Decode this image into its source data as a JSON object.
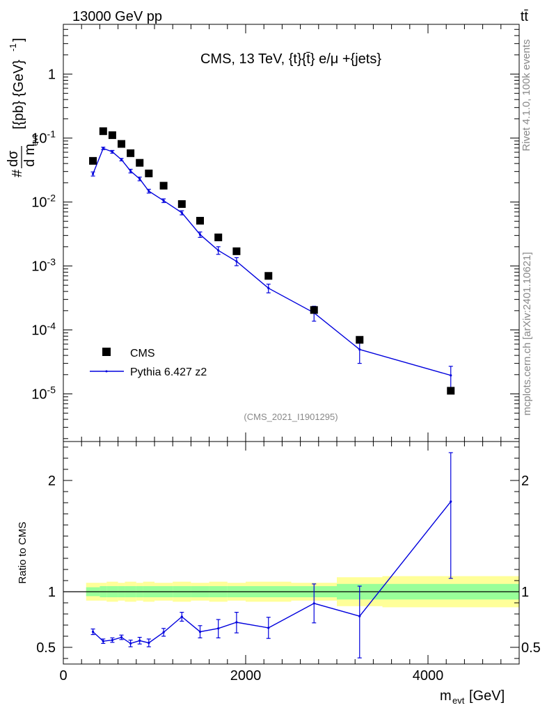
{
  "header": {
    "energy_label": "13000 GeV pp",
    "process_label": "tt̄"
  },
  "side_labels": {
    "rivet": "Rivet 4.1.0,  100k events",
    "source": "mcplots.cern.ch [arXiv:2401.10621]"
  },
  "chart_data": [
    {
      "type": "scatter",
      "panel": "main",
      "title": "CMS, 13 TeV, {t}{t̄} e/μ +{jets}",
      "watermark": "(CMS_2021_I1901295)",
      "ylabel": "# dσ/d m_evt [{pb} {GeV}^-1]",
      "yscale": "log",
      "xlim": [
        0,
        5000
      ],
      "ylim": [
        1.8e-06,
        6
      ],
      "y_ticks": [
        {
          "value": 1e-05,
          "label": "10^-5"
        },
        {
          "value": 0.0001,
          "label": "10^-4"
        },
        {
          "value": 0.001,
          "label": "10^-3"
        },
        {
          "value": 0.01,
          "label": "10^-2"
        },
        {
          "value": 0.1,
          "label": "10^-1"
        },
        {
          "value": 1,
          "label": "1"
        }
      ],
      "legend": [
        "CMS",
        "Pythia 6.427 z2"
      ],
      "legend_position": "bottom-left",
      "series": [
        {
          "name": "CMS",
          "kind": "markers",
          "color": "#000000",
          "x": [
            325,
            437.5,
            537.5,
            637.5,
            737.5,
            837.5,
            937.5,
            1100,
            1300,
            1500,
            1700,
            1900,
            2250,
            2750,
            3250,
            4250
          ],
          "y": [
            0.044,
            0.128,
            0.111,
            0.081,
            0.058,
            0.041,
            0.028,
            0.018,
            0.0093,
            0.0051,
            0.0028,
            0.0017,
            0.0007,
            0.000205,
            7e-05,
            1.12e-05
          ]
        },
        {
          "name": "Pythia 6.427 z2",
          "kind": "line",
          "color": "#0000dd",
          "x": [
            325,
            437.5,
            537.5,
            637.5,
            737.5,
            837.5,
            937.5,
            1100,
            1300,
            1500,
            1700,
            1900,
            2250,
            2750,
            3250,
            4250
          ],
          "y": [
            0.0275,
            0.069,
            0.061,
            0.046,
            0.0305,
            0.023,
            0.0148,
            0.0105,
            0.0068,
            0.0031,
            0.00175,
            0.00118,
            0.00045,
            0.000185,
            4.95e-05,
            1.95e-05
          ],
          "y_low": [
            0.0255,
            0.066,
            0.058,
            0.044,
            0.0285,
            0.0215,
            0.0138,
            0.0098,
            0.0063,
            0.0028,
            0.00152,
            0.00101,
            0.00038,
            0.000137,
            3e-05,
            1.25e-05
          ],
          "y_high": [
            0.0295,
            0.072,
            0.064,
            0.048,
            0.0325,
            0.0245,
            0.0158,
            0.0112,
            0.0073,
            0.0034,
            0.002,
            0.00135,
            0.00052,
            0.000235,
            7.4e-05,
            2.7e-05
          ]
        }
      ]
    },
    {
      "type": "line",
      "panel": "ratio",
      "ylabel": "Ratio to CMS",
      "xlabel": "m_evt [GeV]",
      "xlim": [
        0,
        5000
      ],
      "ylim": [
        0.35,
        2.35
      ],
      "x_ticks": [
        {
          "value": 0,
          "label": "0"
        },
        {
          "value": 2000,
          "label": "2000"
        },
        {
          "value": 4000,
          "label": "4000"
        }
      ],
      "y_ticks": [
        {
          "value": 0.5,
          "label": "0.5"
        },
        {
          "value": 1,
          "label": "1"
        },
        {
          "value": 2,
          "label": "2"
        }
      ],
      "reference_line": 1,
      "bands": {
        "bin_edges": [
          250,
          400,
          475,
          600,
          675,
          800,
          875,
          1000,
          1200,
          1400,
          1600,
          1800,
          2000,
          2500,
          3000,
          3500,
          5000
        ],
        "green_low": [
          0.96,
          0.95,
          0.95,
          0.95,
          0.95,
          0.95,
          0.95,
          0.95,
          0.95,
          0.95,
          0.95,
          0.95,
          0.95,
          0.95,
          0.93,
          0.93
        ],
        "green_high": [
          1.04,
          1.05,
          1.05,
          1.05,
          1.05,
          1.05,
          1.05,
          1.05,
          1.05,
          1.05,
          1.05,
          1.05,
          1.05,
          1.05,
          1.07,
          1.07
        ],
        "yellow_low": [
          0.92,
          0.92,
          0.91,
          0.92,
          0.91,
          0.92,
          0.91,
          0.92,
          0.91,
          0.92,
          0.91,
          0.92,
          0.91,
          0.92,
          0.87,
          0.86
        ],
        "yellow_high": [
          1.08,
          1.08,
          1.09,
          1.08,
          1.09,
          1.08,
          1.09,
          1.08,
          1.09,
          1.08,
          1.09,
          1.08,
          1.09,
          1.08,
          1.13,
          1.14
        ]
      },
      "series": [
        {
          "name": "Pythia 6.427 z2 / CMS",
          "color": "#0000dd",
          "x": [
            325,
            437.5,
            537.5,
            637.5,
            737.5,
            837.5,
            937.5,
            1100,
            1300,
            1500,
            1700,
            1900,
            2250,
            2750,
            3250,
            4250
          ],
          "y": [
            0.64,
            0.555,
            0.565,
            0.59,
            0.535,
            0.56,
            0.54,
            0.635,
            0.775,
            0.64,
            0.67,
            0.725,
            0.675,
            0.895,
            0.78,
            1.81
          ],
          "y_low": [
            0.615,
            0.535,
            0.545,
            0.57,
            0.505,
            0.53,
            0.505,
            0.6,
            0.735,
            0.585,
            0.585,
            0.63,
            0.58,
            0.72,
            0.405,
            1.12
          ],
          "y_high": [
            0.665,
            0.575,
            0.585,
            0.61,
            0.565,
            0.59,
            0.575,
            0.67,
            0.815,
            0.695,
            0.75,
            0.815,
            0.77,
            1.07,
            1.05,
            2.25
          ]
        }
      ]
    }
  ]
}
